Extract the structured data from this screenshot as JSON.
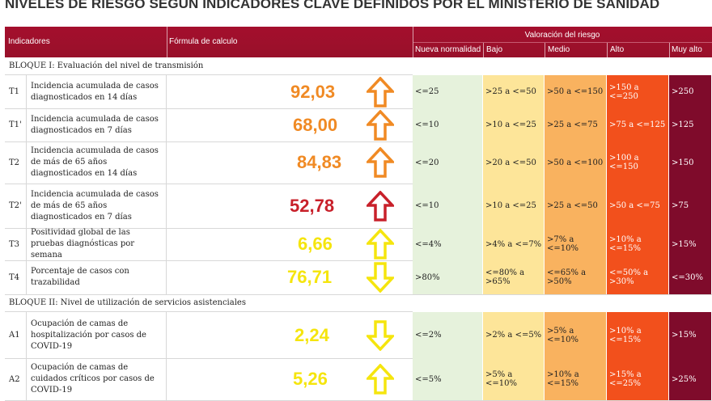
{
  "title": "NIVELES DE RIESGO SEGÚN INDICADORES CLAVE DEFINIDOS POR EL MINISTERIO DE SANIDAD",
  "header": {
    "indicadores": "Indicadores",
    "formula": "Fórmula de calculo",
    "valoracion": "Valoración del riesgo",
    "levels": [
      "Nueva normalidad",
      "Bajo",
      "Medio",
      "Alto",
      "Muy alto"
    ]
  },
  "colors": {
    "header": "#a40f2d",
    "nueva_normalidad": "#e6f2dc",
    "bajo": "#fde599",
    "medio": "#f9b25f",
    "alto": "#f2501c",
    "muy_alto": "#7f0b2b",
    "value_orange": "#f08a24",
    "value_red": "#c8202a",
    "value_yellow": "#f5e50e"
  },
  "blocks": {
    "b1": "BLOQUE I: Evaluación del nivel de transmisión",
    "b2": "BLOQUE II: Nivel de utilización de servicios asistenciales"
  },
  "rows": [
    {
      "code": "T1",
      "desc": "Incidencia acumulada de casos diagnosticados en 14 días",
      "value": "92,03",
      "arrow": "up-arrow-icon",
      "color": "orange",
      "nn": "<=25",
      "bajo": ">25 a <=50",
      "medio": ">50 a <=150",
      "alto": ">150 a <=250",
      "muy": ">250"
    },
    {
      "code": "T1'",
      "desc": "Incidencia acumulada de casos diagnosticados en 7 días",
      "value": "68,00",
      "arrow": "up-arrow-icon",
      "color": "orange",
      "nn": "<=10",
      "bajo": ">10 a <=25",
      "medio": ">25 a <=75",
      "alto": ">75 a <=125",
      "muy": ">125"
    },
    {
      "code": "T2",
      "desc": "Incidencia acumulada de casos de más de 65 años diagnosticados en 14 días",
      "value": "84,83",
      "arrow": "up-arrow-icon",
      "color": "orange",
      "nn": "<=20",
      "bajo": ">20 a <=50",
      "medio": ">50 a <=100",
      "alto": ">100 a <=150",
      "muy": ">150"
    },
    {
      "code": "T2'",
      "desc": "Incidencia acumulada de casos de más de 65 años diagnosticados en 7 días",
      "value": "52,78",
      "arrow": "up-arrow-icon",
      "color": "red",
      "nn": "<=10",
      "bajo": ">10 a <=25",
      "medio": ">25 a <=50",
      "alto": ">50 a <=75",
      "muy": ">75"
    },
    {
      "code": "T3",
      "desc": "Positividad global de las pruebas diagnósticas por semana",
      "value": "6,66",
      "arrow": "up-arrow-icon",
      "color": "yellow",
      "nn": "<=4%",
      "bajo": ">4% a <=7%",
      "medio": ">7% a <=10%",
      "alto": ">10% a <=15%",
      "muy": ">15%"
    },
    {
      "code": "T4",
      "desc": "Porcentaje de casos con trazabilidad",
      "value": "76,71",
      "arrow": "down-arrow-icon",
      "color": "yellow",
      "nn": ">80%",
      "bajo": "<=80% a >65%",
      "medio": "<=65% a >50%",
      "alto": "<=50% a >30%",
      "muy": "<=30%"
    },
    {
      "code": "A1",
      "desc": "Ocupación de camas de hospitalización por casos de COVID-19",
      "value": "2,24",
      "arrow": "down-arrow-icon",
      "color": "yellow",
      "nn": "<=2%",
      "bajo": ">2% a <=5%",
      "medio": ">5% a <=10%",
      "alto": ">10% a <=15%",
      "muy": ">15%"
    },
    {
      "code": "A2",
      "desc": "Ocupación de camas de cuidados críticos por casos de COVID-19",
      "value": "5,26",
      "arrow": "up-arrow-icon",
      "color": "yellow",
      "nn": "<=5%",
      "bajo": ">5% a <=10%",
      "medio": ">10% a <=15%",
      "alto": ">15% a <=25%",
      "muy": ">25%"
    }
  ]
}
